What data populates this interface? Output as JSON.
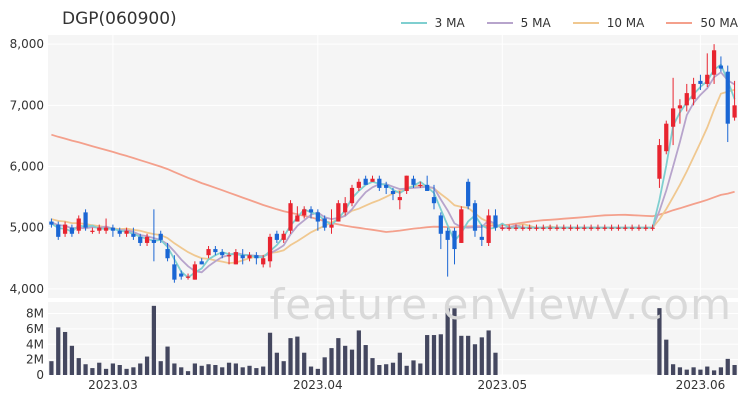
{
  "chart_data": {
    "type": "candlestick",
    "title": "DGP(060900)",
    "watermark": "feature.enViewV.com",
    "price_axis": {
      "ylim": [
        3850,
        8150
      ],
      "ticks": [
        4000,
        5000,
        6000,
        7000,
        8000
      ],
      "tick_labels": [
        "4,000",
        "5,000",
        "6,000",
        "7,000",
        "8,000"
      ]
    },
    "volume_axis": {
      "ylim": [
        0,
        9500000
      ],
      "ticks": [
        0,
        2000000,
        4000000,
        6000000,
        8000000
      ],
      "tick_labels": [
        "0",
        "2M",
        "4M",
        "6M",
        "8M"
      ]
    },
    "x_labels": [
      {
        "label": "2023.03",
        "index": 9
      },
      {
        "label": "2023.04",
        "index": 39
      },
      {
        "label": "2023.05",
        "index": 66
      },
      {
        "label": "2023.06",
        "index": 95
      }
    ],
    "legend": [
      {
        "name": "3 MA",
        "color": "#7fcfd0"
      },
      {
        "name": "5 MA",
        "color": "#b7a4cc"
      },
      {
        "name": "10 MA",
        "color": "#f0c890"
      },
      {
        "name": "50 MA",
        "color": "#f4a08c"
      }
    ],
    "colors": {
      "up": "#e8242f",
      "down": "#1a66d4",
      "volume": "#44475f",
      "plot_bg": "#f5f5f5",
      "grid": "#ffffff"
    },
    "candles": [
      [
        5100,
        5150,
        5000,
        5050,
        1800000
      ],
      [
        5050,
        5100,
        4800,
        4850,
        6200000
      ],
      [
        4900,
        5100,
        4850,
        5050,
        5600000
      ],
      [
        5000,
        5050,
        4850,
        4900,
        3800000
      ],
      [
        4950,
        5200,
        4900,
        5150,
        2200000
      ],
      [
        5250,
        5300,
        4950,
        5000,
        1400000
      ],
      [
        4950,
        5000,
        4900,
        4950,
        900000
      ],
      [
        4950,
        5050,
        4900,
        5000,
        1600000
      ],
      [
        4950,
        5150,
        4900,
        5000,
        800000
      ],
      [
        5000,
        5050,
        4850,
        4950,
        1500000
      ],
      [
        4950,
        5000,
        4850,
        4900,
        1300000
      ],
      [
        4900,
        5000,
        4850,
        4950,
        800000
      ],
      [
        4900,
        5000,
        4800,
        4850,
        1000000
      ],
      [
        4850,
        4900,
        4700,
        4750,
        1500000
      ],
      [
        4750,
        4900,
        4700,
        4850,
        2400000
      ],
      [
        4800,
        5300,
        4450,
        4750,
        9000000
      ],
      [
        4900,
        4950,
        4750,
        4800,
        1800000
      ],
      [
        4650,
        4750,
        4450,
        4500,
        3700000
      ],
      [
        4400,
        4550,
        4100,
        4150,
        1500000
      ],
      [
        4250,
        4300,
        4150,
        4200,
        1000000
      ],
      [
        4200,
        4250,
        4150,
        4200,
        500000
      ],
      [
        4150,
        4450,
        4150,
        4400,
        1500000
      ],
      [
        4450,
        4500,
        4400,
        4400,
        1200000
      ],
      [
        4550,
        4700,
        4500,
        4650,
        1400000
      ],
      [
        4650,
        4700,
        4550,
        4600,
        1300000
      ],
      [
        4600,
        4650,
        4500,
        4550,
        1000000
      ],
      [
        4550,
        4600,
        4400,
        4550,
        1600000
      ],
      [
        4400,
        4650,
        4400,
        4600,
        1500000
      ],
      [
        4550,
        4650,
        4400,
        4500,
        1000000
      ],
      [
        4500,
        4600,
        4450,
        4550,
        1200000
      ],
      [
        4550,
        4600,
        4400,
        4500,
        900000
      ],
      [
        4400,
        4550,
        4350,
        4500,
        1100000
      ],
      [
        4450,
        4900,
        4350,
        4850,
        5500000
      ],
      [
        4900,
        4950,
        4750,
        4800,
        2900000
      ],
      [
        4800,
        4950,
        4750,
        4900,
        1800000
      ],
      [
        4950,
        5450,
        4900,
        5400,
        4800000
      ],
      [
        5100,
        5350,
        5100,
        5200,
        5000000
      ],
      [
        5200,
        5350,
        5150,
        5300,
        2900000
      ],
      [
        5300,
        5350,
        5150,
        5250,
        1100000
      ],
      [
        5250,
        5300,
        4950,
        5100,
        800000
      ],
      [
        5150,
        5200,
        4950,
        5000,
        2300000
      ],
      [
        5000,
        5300,
        4900,
        5050,
        3500000
      ],
      [
        5100,
        5450,
        5100,
        5400,
        4800000
      ],
      [
        5250,
        5500,
        5200,
        5400,
        3800000
      ],
      [
        5400,
        5700,
        5350,
        5650,
        3300000
      ],
      [
        5650,
        5800,
        5600,
        5750,
        5800000
      ],
      [
        5800,
        5850,
        5700,
        5700,
        3900000
      ],
      [
        5750,
        5850,
        5750,
        5800,
        2200000
      ],
      [
        5800,
        5850,
        5600,
        5650,
        1300000
      ],
      [
        5700,
        5750,
        5550,
        5650,
        1400000
      ],
      [
        5600,
        5650,
        5450,
        5550,
        1600000
      ],
      [
        5450,
        5600,
        5300,
        5500,
        2900000
      ],
      [
        5600,
        5850,
        5550,
        5850,
        1200000
      ],
      [
        5800,
        5850,
        5650,
        5700,
        1900000
      ],
      [
        5700,
        5750,
        5650,
        5700,
        1500000
      ],
      [
        5700,
        5850,
        5600,
        5600,
        5200000
      ],
      [
        5500,
        5700,
        5300,
        5400,
        5200000
      ],
      [
        5200,
        5250,
        4650,
        4900,
        5300000
      ],
      [
        4950,
        5000,
        4200,
        4800,
        8800000
      ],
      [
        4950,
        5000,
        4400,
        4650,
        8800000
      ],
      [
        4750,
        5350,
        4750,
        5300,
        5100000
      ],
      [
        5750,
        5800,
        5300,
        5350,
        5100000
      ],
      [
        5400,
        5450,
        4850,
        4950,
        4000000
      ],
      [
        4850,
        5050,
        4700,
        4800,
        4900000
      ],
      [
        4750,
        5300,
        4700,
        5200,
        5800000
      ],
      [
        5200,
        5300,
        4950,
        5000,
        2900000
      ],
      [
        5000,
        5050,
        4950,
        5000,
        0
      ],
      [
        5000,
        5050,
        4950,
        5000,
        0
      ],
      [
        5000,
        5050,
        4950,
        5000,
        0
      ],
      [
        5000,
        5050,
        4950,
        5000,
        0
      ],
      [
        5000,
        5050,
        4950,
        5000,
        0
      ],
      [
        5000,
        5050,
        4950,
        5000,
        0
      ],
      [
        5000,
        5050,
        4950,
        5000,
        0
      ],
      [
        5000,
        5050,
        4950,
        5000,
        0
      ],
      [
        5000,
        5050,
        4950,
        5000,
        0
      ],
      [
        5000,
        5050,
        4950,
        5000,
        0
      ],
      [
        5000,
        5050,
        4950,
        5000,
        0
      ],
      [
        5000,
        5050,
        4950,
        5000,
        0
      ],
      [
        5000,
        5050,
        4950,
        5000,
        0
      ],
      [
        5000,
        5050,
        4950,
        5000,
        0
      ],
      [
        5000,
        5050,
        4950,
        5000,
        0
      ],
      [
        5000,
        5050,
        4950,
        5000,
        0
      ],
      [
        5000,
        5050,
        4950,
        5000,
        0
      ],
      [
        5000,
        5050,
        4950,
        5000,
        0
      ],
      [
        5000,
        5050,
        4950,
        5000,
        0
      ],
      [
        5000,
        5050,
        4950,
        5000,
        0
      ],
      [
        5000,
        5050,
        4950,
        5000,
        0
      ],
      [
        5000,
        5050,
        4950,
        5000,
        0
      ],
      [
        5000,
        5050,
        4950,
        5000,
        0
      ],
      [
        5800,
        6450,
        5650,
        6350,
        8700000
      ],
      [
        6250,
        6750,
        6200,
        6700,
        4600000
      ],
      [
        6650,
        7450,
        6350,
        6950,
        1400000
      ],
      [
        6950,
        7100,
        6700,
        7000,
        1000000
      ],
      [
        7000,
        7350,
        6900,
        7200,
        700000
      ],
      [
        7100,
        7450,
        7000,
        7350,
        1000000
      ],
      [
        7400,
        7500,
        7250,
        7350,
        700000
      ],
      [
        7350,
        7850,
        7300,
        7500,
        1100000
      ],
      [
        7500,
        8000,
        7350,
        7900,
        600000
      ],
      [
        7650,
        7800,
        7550,
        7600,
        1000000
      ],
      [
        7550,
        7650,
        6400,
        6700,
        2100000
      ],
      [
        6800,
        7400,
        6750,
        7000,
        1300000
      ]
    ]
  }
}
